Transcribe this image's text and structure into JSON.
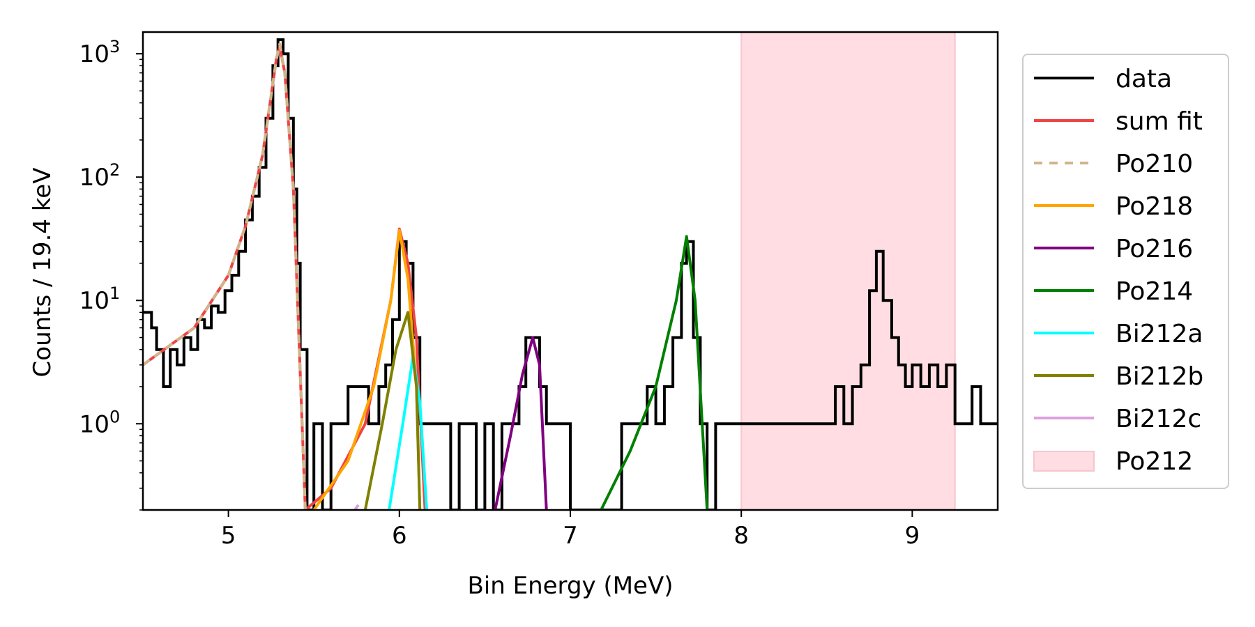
{
  "chart_data": {
    "type": "line",
    "title": "",
    "xlabel": "Bin Energy (MeV)",
    "ylabel": "Counts / 19.4 keV",
    "xlim": [
      4.5,
      9.5
    ],
    "ylim": [
      0.2,
      1500
    ],
    "yscale": "log",
    "grid": false,
    "legend_position": "outside-right",
    "x_ticks": [
      5,
      6,
      7,
      8,
      9
    ],
    "x_tick_labels": [
      "5",
      "6",
      "7",
      "8",
      "9"
    ],
    "y_ticks": [
      1,
      10,
      100,
      1000
    ],
    "y_tick_base": "10",
    "y_tick_exponents": [
      "0",
      "1",
      "2",
      "3"
    ],
    "legend": [
      {
        "label": "data",
        "color": "#000000",
        "style": "solid"
      },
      {
        "label": "sum fit",
        "color": "#ef4444",
        "style": "solid"
      },
      {
        "label": "Po210",
        "color": "#d2b48c",
        "style": "dashed"
      },
      {
        "label": "Po218",
        "color": "#ffa500",
        "style": "solid"
      },
      {
        "label": "Po216",
        "color": "#800080",
        "style": "solid"
      },
      {
        "label": "Po214",
        "color": "#008000",
        "style": "solid"
      },
      {
        "label": "Bi212a",
        "color": "#00ffff",
        "style": "solid"
      },
      {
        "label": "Bi212b",
        "color": "#808000",
        "style": "solid"
      },
      {
        "label": "Bi212c",
        "color": "#dda0dd",
        "style": "solid"
      },
      {
        "label": "Po212",
        "color": "#ffdde2",
        "style": "patch"
      }
    ],
    "shaded_region": {
      "name": "Po212",
      "x_start": 8.0,
      "x_end": 9.25,
      "color": "#ffdde2"
    },
    "data_histogram": {
      "bin_width": 0.0194,
      "points": [
        [
          4.5,
          8
        ],
        [
          4.55,
          6
        ],
        [
          4.58,
          4
        ],
        [
          4.62,
          2
        ],
        [
          4.66,
          4
        ],
        [
          4.7,
          3
        ],
        [
          4.74,
          5
        ],
        [
          4.78,
          4
        ],
        [
          4.82,
          7
        ],
        [
          4.86,
          6
        ],
        [
          4.9,
          9
        ],
        [
          4.94,
          8
        ],
        [
          4.98,
          12
        ],
        [
          5.02,
          16
        ],
        [
          5.06,
          25
        ],
        [
          5.1,
          45
        ],
        [
          5.14,
          70
        ],
        [
          5.18,
          120
        ],
        [
          5.22,
          300
        ],
        [
          5.26,
          800
        ],
        [
          5.29,
          1300
        ],
        [
          5.32,
          1000
        ],
        [
          5.35,
          300
        ],
        [
          5.38,
          80
        ],
        [
          5.4,
          20
        ],
        [
          5.42,
          4
        ],
        [
          5.46,
          0.2
        ],
        [
          5.5,
          1
        ],
        [
          5.55,
          0.2
        ],
        [
          5.6,
          1
        ],
        [
          5.65,
          1
        ],
        [
          5.7,
          2
        ],
        [
          5.76,
          2
        ],
        [
          5.82,
          1
        ],
        [
          5.88,
          2
        ],
        [
          5.92,
          3
        ],
        [
          5.96,
          7
        ],
        [
          6.0,
          30
        ],
        [
          6.04,
          20
        ],
        [
          6.08,
          5
        ],
        [
          6.12,
          1
        ],
        [
          6.16,
          1
        ],
        [
          6.2,
          1
        ],
        [
          6.25,
          1
        ],
        [
          6.3,
          0.2
        ],
        [
          6.35,
          1
        ],
        [
          6.4,
          1
        ],
        [
          6.45,
          0.2
        ],
        [
          6.5,
          1
        ],
        [
          6.55,
          0.2
        ],
        [
          6.6,
          1
        ],
        [
          6.65,
          1
        ],
        [
          6.7,
          2
        ],
        [
          6.74,
          5
        ],
        [
          6.78,
          5
        ],
        [
          6.82,
          2
        ],
        [
          6.86,
          1
        ],
        [
          6.9,
          1
        ],
        [
          6.95,
          1
        ],
        [
          7.0,
          0.2
        ],
        [
          7.1,
          0.2
        ],
        [
          7.2,
          0.2
        ],
        [
          7.3,
          1
        ],
        [
          7.35,
          1
        ],
        [
          7.4,
          1
        ],
        [
          7.45,
          2
        ],
        [
          7.5,
          1
        ],
        [
          7.55,
          2
        ],
        [
          7.6,
          5
        ],
        [
          7.65,
          20
        ],
        [
          7.68,
          30
        ],
        [
          7.72,
          5
        ],
        [
          7.76,
          1
        ],
        [
          7.8,
          0.2
        ],
        [
          7.85,
          1
        ],
        [
          7.9,
          1
        ],
        [
          8.05,
          1
        ],
        [
          8.1,
          1
        ],
        [
          8.2,
          1
        ],
        [
          8.3,
          1
        ],
        [
          8.4,
          1
        ],
        [
          8.5,
          1
        ],
        [
          8.55,
          2
        ],
        [
          8.6,
          1
        ],
        [
          8.65,
          2
        ],
        [
          8.7,
          3
        ],
        [
          8.75,
          12
        ],
        [
          8.79,
          25
        ],
        [
          8.83,
          10
        ],
        [
          8.88,
          5
        ],
        [
          8.92,
          3
        ],
        [
          8.96,
          2
        ],
        [
          9.0,
          3
        ],
        [
          9.05,
          2
        ],
        [
          9.1,
          3
        ],
        [
          9.15,
          2
        ],
        [
          9.2,
          3
        ],
        [
          9.25,
          1
        ],
        [
          9.3,
          1
        ],
        [
          9.35,
          2
        ],
        [
          9.4,
          1
        ],
        [
          9.45,
          1
        ],
        [
          9.5,
          1
        ]
      ]
    },
    "fit_curves": [
      {
        "name": "sum fit",
        "points": [
          [
            4.5,
            3
          ],
          [
            4.8,
            6
          ],
          [
            5.0,
            16
          ],
          [
            5.1,
            40
          ],
          [
            5.2,
            150
          ],
          [
            5.28,
            900
          ],
          [
            5.3,
            1150
          ],
          [
            5.33,
            700
          ],
          [
            5.38,
            80
          ],
          [
            5.45,
            0.2
          ],
          [
            5.6,
            0.3
          ],
          [
            5.8,
            1
          ],
          [
            5.95,
            10
          ],
          [
            6.0,
            38
          ],
          [
            6.05,
            20
          ],
          [
            6.1,
            5
          ],
          [
            6.15,
            0.2
          ]
        ]
      },
      {
        "name": "Po210",
        "points": [
          [
            4.5,
            3
          ],
          [
            4.8,
            6
          ],
          [
            5.0,
            16
          ],
          [
            5.1,
            40
          ],
          [
            5.2,
            150
          ],
          [
            5.28,
            900
          ],
          [
            5.3,
            1200
          ],
          [
            5.33,
            700
          ],
          [
            5.38,
            80
          ],
          [
            5.45,
            0.2
          ]
        ]
      },
      {
        "name": "Po218",
        "points": [
          [
            5.5,
            0.2
          ],
          [
            5.7,
            0.5
          ],
          [
            5.85,
            2
          ],
          [
            5.95,
            10
          ],
          [
            6.0,
            37
          ],
          [
            6.05,
            15
          ],
          [
            6.1,
            2
          ],
          [
            6.12,
            0.2
          ]
        ]
      },
      {
        "name": "Po216",
        "points": [
          [
            6.56,
            0.2
          ],
          [
            6.65,
            0.8
          ],
          [
            6.72,
            2.5
          ],
          [
            6.78,
            5
          ],
          [
            6.82,
            3
          ],
          [
            6.86,
            0.2
          ]
        ]
      },
      {
        "name": "Po214",
        "points": [
          [
            7.18,
            0.2
          ],
          [
            7.35,
            0.6
          ],
          [
            7.5,
            2
          ],
          [
            7.62,
            10
          ],
          [
            7.68,
            33
          ],
          [
            7.73,
            10
          ],
          [
            7.8,
            0.2
          ]
        ]
      },
      {
        "name": "Bi212a",
        "points": [
          [
            5.94,
            0.2
          ],
          [
            6.02,
            1
          ],
          [
            6.08,
            3.5
          ],
          [
            6.12,
            1.5
          ],
          [
            6.16,
            0.2
          ]
        ]
      },
      {
        "name": "Bi212b",
        "points": [
          [
            5.8,
            0.2
          ],
          [
            5.9,
            1
          ],
          [
            5.98,
            4
          ],
          [
            6.05,
            8
          ],
          [
            6.1,
            2
          ],
          [
            6.12,
            0.2
          ]
        ]
      },
      {
        "name": "Bi212c",
        "points": [
          [
            5.74,
            0.2
          ],
          [
            5.76,
            0.22
          ]
        ]
      }
    ]
  }
}
